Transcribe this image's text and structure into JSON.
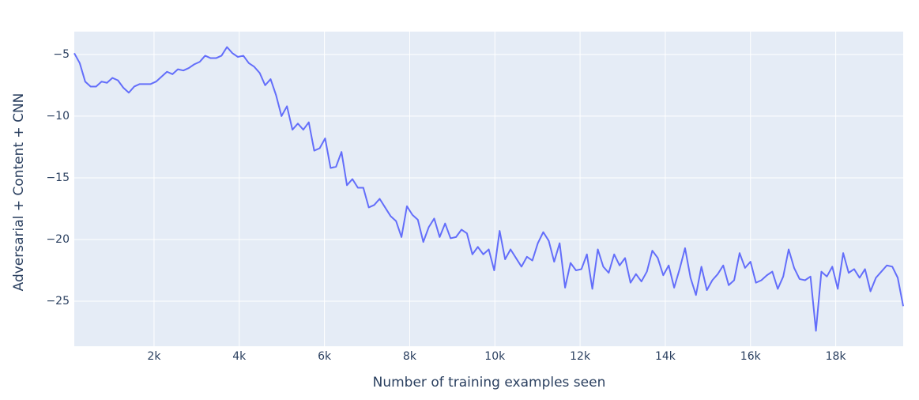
{
  "chart_data": {
    "type": "line",
    "x_label": "Number of training examples seen",
    "y_label": "Adversarial + Content  + CNN",
    "x": [
      128,
      256,
      384,
      512,
      640,
      768,
      896,
      1024,
      1152,
      1280,
      1408,
      1536,
      1664,
      1792,
      1920,
      2048,
      2176,
      2304,
      2432,
      2560,
      2688,
      2816,
      2944,
      3072,
      3200,
      3328,
      3456,
      3584,
      3712,
      3840,
      3968,
      4096,
      4224,
      4352,
      4480,
      4608,
      4736,
      4864,
      4992,
      5120,
      5248,
      5376,
      5504,
      5632,
      5760,
      5888,
      6016,
      6144,
      6272,
      6400,
      6528,
      6656,
      6784,
      6912,
      7040,
      7168,
      7296,
      7424,
      7552,
      7680,
      7808,
      7936,
      8064,
      8192,
      8320,
      8448,
      8576,
      8704,
      8832,
      8960,
      9088,
      9216,
      9344,
      9472,
      9600,
      9728,
      9856,
      9984,
      10112,
      10240,
      10368,
      10496,
      10624,
      10752,
      10880,
      11008,
      11136,
      11264,
      11392,
      11520,
      11648,
      11776,
      11904,
      12032,
      12160,
      12288,
      12416,
      12544,
      12672,
      12800,
      12928,
      13056,
      13184,
      13312,
      13440,
      13568,
      13696,
      13824,
      13952,
      14080,
      14208,
      14336,
      14464,
      14592,
      14720,
      14848,
      14976,
      15104,
      15232,
      15360,
      15488,
      15616,
      15744,
      15872,
      16000,
      16128,
      16256,
      16384,
      16512,
      16640,
      16768,
      16896,
      17024,
      17152,
      17280,
      17408,
      17536,
      17664,
      17792,
      17920,
      18048,
      18176,
      18304,
      18432,
      18560,
      18688,
      18816,
      18944,
      19072,
      19200,
      19328,
      19456,
      19584
    ],
    "series": [
      {
        "color": "#636efa",
        "values": [
          -4.9,
          -5.7,
          -7.2,
          -7.6,
          -7.6,
          -7.2,
          -7.3,
          -6.9,
          -7.1,
          -7.7,
          -8.1,
          -7.6,
          -7.4,
          -7.4,
          -7.4,
          -7.2,
          -6.8,
          -6.4,
          -6.6,
          -6.2,
          -6.3,
          -6.1,
          -5.8,
          -5.6,
          -5.1,
          -5.3,
          -5.3,
          -5.1,
          -4.4,
          -4.9,
          -5.2,
          -5.1,
          -5.7,
          -6.0,
          -6.5,
          -7.5,
          -7.0,
          -8.3,
          -10.0,
          -9.2,
          -11.1,
          -10.6,
          -11.1,
          -10.5,
          -12.8,
          -12.6,
          -11.8,
          -14.2,
          -14.1,
          -12.9,
          -15.6,
          -15.1,
          -15.8,
          -15.8,
          -17.4,
          -17.2,
          -16.7,
          -17.4,
          -18.1,
          -18.5,
          -19.8,
          -17.3,
          -18.0,
          -18.4,
          -20.2,
          -19.0,
          -18.3,
          -19.8,
          -18.7,
          -19.9,
          -19.8,
          -19.2,
          -19.5,
          -21.2,
          -20.6,
          -21.2,
          -20.8,
          -22.5,
          -19.3,
          -21.6,
          -20.8,
          -21.5,
          -22.2,
          -21.4,
          -21.7,
          -20.3,
          -19.4,
          -20.1,
          -21.8,
          -20.3,
          -23.9,
          -21.9,
          -22.5,
          -22.4,
          -21.2,
          -24.0,
          -20.8,
          -22.2,
          -22.7,
          -21.2,
          -22.1,
          -21.5,
          -23.5,
          -22.8,
          -23.4,
          -22.6,
          -20.9,
          -21.5,
          -22.9,
          -22.1,
          -23.9,
          -22.4,
          -20.7,
          -23.1,
          -24.5,
          -22.2,
          -24.1,
          -23.3,
          -22.8,
          -22.1,
          -23.7,
          -23.3,
          -21.1,
          -22.3,
          -21.8,
          -23.5,
          -23.3,
          -22.9,
          -22.6,
          -24.0,
          -23.0,
          -20.8,
          -22.3,
          -23.2,
          -23.3,
          -23.0,
          -27.4,
          -22.6,
          -23.0,
          -22.2,
          -24.0,
          -21.1,
          -22.7,
          -22.4,
          -23.1,
          -22.4,
          -24.2,
          -23.1,
          -22.6,
          -22.1,
          -22.2,
          -23.1,
          -25.4
        ]
      }
    ],
    "xlim": [
      128,
      19584
    ],
    "xticks": [
      {
        "value": 2000,
        "label": "2k"
      },
      {
        "value": 4000,
        "label": "4k"
      },
      {
        "value": 6000,
        "label": "6k"
      },
      {
        "value": 8000,
        "label": "8k"
      },
      {
        "value": 10000,
        "label": "10k"
      },
      {
        "value": 12000,
        "label": "12k"
      },
      {
        "value": 14000,
        "label": "14k"
      },
      {
        "value": 16000,
        "label": "16k"
      },
      {
        "value": 18000,
        "label": "18k"
      }
    ],
    "ylim": [
      -28.65,
      -3.15
    ],
    "yticks": [
      {
        "value": -5,
        "label": "−5"
      },
      {
        "value": -10,
        "label": "−10"
      },
      {
        "value": -15,
        "label": "−15"
      },
      {
        "value": -20,
        "label": "−20"
      },
      {
        "value": -25,
        "label": "−25"
      }
    ],
    "grid": true
  }
}
